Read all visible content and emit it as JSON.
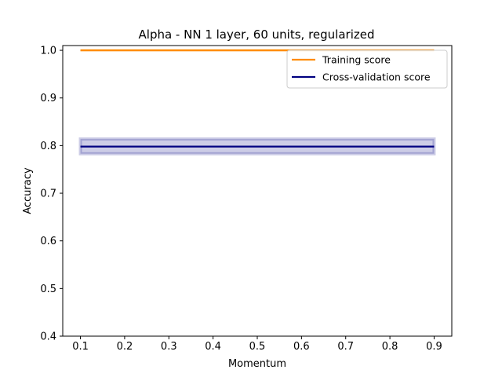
{
  "chart_data": {
    "type": "line",
    "title": "Alpha - NN 1 layer, 60 units, regularized",
    "xlabel": "Momentum",
    "ylabel": "Accuracy",
    "xlim": [
      0.06,
      0.94
    ],
    "ylim": [
      0.4,
      1.01
    ],
    "xticks": [
      "0.1",
      "0.2",
      "0.3",
      "0.4",
      "0.5",
      "0.6",
      "0.7",
      "0.8",
      "0.9"
    ],
    "yticks": [
      "0.4",
      "0.5",
      "0.6",
      "0.7",
      "0.8",
      "0.9",
      "1.0"
    ],
    "x": [
      0.1,
      0.2,
      0.3,
      0.4,
      0.5,
      0.6,
      0.7,
      0.8,
      0.9
    ],
    "series": [
      {
        "name": "Training score",
        "color": "#ff8c00",
        "values": [
          1.0,
          1.0,
          1.0,
          1.0,
          1.0,
          1.0,
          1.0,
          1.0,
          1.0
        ],
        "band_lower": [
          1.0,
          1.0,
          1.0,
          1.0,
          1.0,
          1.0,
          1.0,
          1.0,
          1.0
        ],
        "band_upper": [
          1.0,
          1.0,
          1.0,
          1.0,
          1.0,
          1.0,
          1.0,
          1.0,
          1.0
        ]
      },
      {
        "name": "Cross-validation score",
        "color": "#000080",
        "values": [
          0.798,
          0.798,
          0.798,
          0.798,
          0.798,
          0.798,
          0.798,
          0.798,
          0.798
        ],
        "band_lower": [
          0.783,
          0.783,
          0.783,
          0.783,
          0.783,
          0.783,
          0.783,
          0.783,
          0.783
        ],
        "band_upper": [
          0.814,
          0.814,
          0.814,
          0.814,
          0.814,
          0.814,
          0.814,
          0.814,
          0.814
        ]
      }
    ],
    "legend_position": "top-right",
    "grid": false
  }
}
